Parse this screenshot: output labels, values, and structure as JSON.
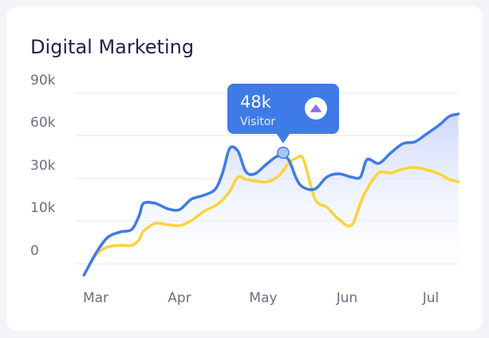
{
  "chart_data": {
    "type": "line",
    "title": "Digital Marketing",
    "x": [
      -0.14,
      0,
      0.14,
      0.29,
      0.43,
      0.52,
      0.57,
      0.71,
      0.86,
      1,
      1.14,
      1.29,
      1.43,
      1.52,
      1.6,
      1.7,
      1.79,
      1.9,
      2.05,
      2.19,
      2.3,
      2.4,
      2.48,
      2.62,
      2.76,
      2.9,
      3.05,
      3.16,
      3.24,
      3.38,
      3.52,
      3.67,
      3.81,
      3.95,
      4.1,
      4.22,
      4.33
    ],
    "series": [
      {
        "name": "Visitor",
        "color": "#3f7be6",
        "values": [
          -2600,
          2400,
          6100,
          7400,
          8000,
          12600,
          18300,
          18300,
          15700,
          15300,
          20200,
          22100,
          25100,
          35000,
          51100,
          48900,
          35000,
          33300,
          40600,
          46100,
          43300,
          29600,
          25800,
          25100,
          31100,
          33300,
          31100,
          31100,
          43300,
          40600,
          47800,
          54400,
          55600,
          61100,
          67400,
          73600,
          75300
        ]
      },
      {
        "color": "#fbd33a",
        "values": [
          -2600,
          2000,
          3900,
          4300,
          4300,
          5700,
          7600,
          9400,
          9100,
          8900,
          10000,
          14500,
          17200,
          20200,
          24000,
          31100,
          29600,
          28900,
          28500,
          32200,
          40600,
          44400,
          43300,
          20200,
          16400,
          10800,
          8900,
          18300,
          25100,
          33900,
          33900,
          36700,
          37800,
          36100,
          33300,
          29600,
          28500
        ]
      }
    ],
    "xlim": [
      -0.14,
      4.33
    ],
    "xticks": [
      {
        "value": 0,
        "label": "Mar"
      },
      {
        "value": 1,
        "label": "Apr"
      },
      {
        "value": 2,
        "label": "May"
      },
      {
        "value": 3,
        "label": "Jun"
      },
      {
        "value": 4,
        "label": "Jul"
      }
    ],
    "ylim": [
      0,
      90000
    ],
    "yticks": [
      {
        "value": 0,
        "label": "0"
      },
      {
        "value": 10000,
        "label": "10k"
      },
      {
        "value": 30000,
        "label": "30k"
      },
      {
        "value": 60000,
        "label": "60k"
      },
      {
        "value": 90000,
        "label": "90k"
      }
    ],
    "grid": true,
    "tooltip": {
      "value": 48000,
      "value_label": "48k",
      "label": "Visitor"
    }
  }
}
